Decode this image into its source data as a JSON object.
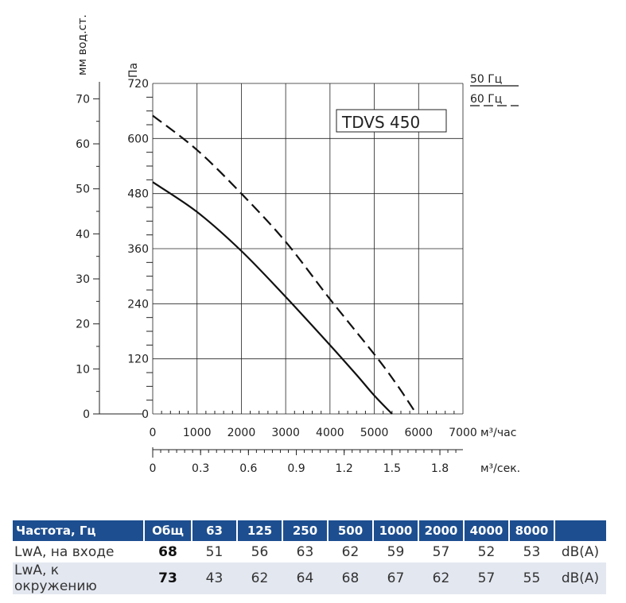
{
  "chart_data": {
    "type": "line",
    "title": "TDVS 450",
    "xlabel": "м³/час",
    "x2label": "м³/сек.",
    "ylabel": "Па",
    "y2label": "мм вод.ст.",
    "xlim": [
      0,
      7000
    ],
    "ylim": [
      0,
      720
    ],
    "x_ticks": [
      "0",
      "1000",
      "2000",
      "3000",
      "4000",
      "5000",
      "6000",
      "7000"
    ],
    "y_ticks": [
      "0",
      "120",
      "240",
      "360",
      "480",
      "600",
      "720"
    ],
    "x2_ticks": [
      "0",
      "0.3",
      "0.6",
      "0.9",
      "1.2",
      "1.5",
      "1.8"
    ],
    "y2_ticks": [
      "0",
      "10",
      "20",
      "30",
      "40",
      "50",
      "60",
      "70"
    ],
    "grid": true,
    "series": [
      {
        "name": "50 Гц",
        "style": "solid",
        "x": [
          0,
          1000,
          2000,
          3000,
          4000,
          4600,
          5000,
          5400
        ],
        "y": [
          505,
          440,
          355,
          255,
          150,
          85,
          40,
          0
        ]
      },
      {
        "name": "60 Гц",
        "style": "dashed",
        "x": [
          0,
          1000,
          2000,
          3000,
          4000,
          5000,
          5500,
          5950
        ],
        "y": [
          650,
          575,
          480,
          375,
          250,
          130,
          65,
          0
        ]
      }
    ]
  },
  "legend": {
    "items": [
      "50 Гц",
      "60 Гц"
    ]
  },
  "table": {
    "headers": [
      "Частота, Гц",
      "Общ",
      "63",
      "125",
      "250",
      "500",
      "1000",
      "2000",
      "4000",
      "8000",
      ""
    ],
    "rows": [
      {
        "label": "LwA, на входе",
        "total": "68",
        "values": [
          "51",
          "56",
          "63",
          "62",
          "59",
          "57",
          "52",
          "53"
        ],
        "unit": "dB(A)"
      },
      {
        "label": "LwA, к окружению",
        "total": "73",
        "values": [
          "43",
          "62",
          "64",
          "68",
          "67",
          "62",
          "57",
          "55"
        ],
        "unit": "dB(A)"
      }
    ]
  },
  "colors": {
    "header_bg": "#1d4e8f",
    "row_alt_bg": "#e3e7f0",
    "line": "#111111",
    "grid": "#333333"
  }
}
